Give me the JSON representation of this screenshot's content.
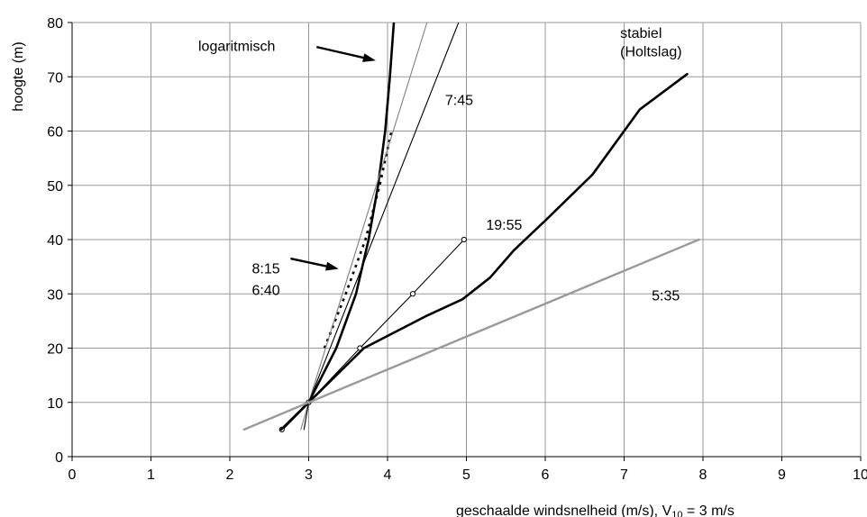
{
  "chart_data": {
    "type": "line",
    "xlabel_main": "geschaalde windsnelheid (m/s), V",
    "xlabel_sub": "10",
    "xlabel_tail": " = 3 m/s",
    "ylabel": "hoogte (m)",
    "xlim": [
      0,
      10
    ],
    "ylim": [
      0,
      80
    ],
    "x_ticks": [
      0,
      1,
      2,
      3,
      4,
      5,
      6,
      7,
      8,
      9,
      10
    ],
    "y_ticks": [
      0,
      10,
      20,
      30,
      40,
      50,
      60,
      70,
      80
    ],
    "x_tick_labels": [
      "0",
      "1",
      "2",
      "3",
      "4",
      "5",
      "6",
      "7",
      "8",
      "9",
      "10"
    ],
    "y_tick_labels": [
      "0",
      "10",
      "20",
      "30",
      "40",
      "50",
      "60",
      "70",
      "80"
    ],
    "grid": true,
    "series": [
      {
        "name": "logaritmisch",
        "color": "#000000",
        "style": "thick",
        "points": [
          [
            2.66,
            5
          ],
          [
            3.0,
            10
          ],
          [
            3.35,
            20
          ],
          [
            3.6,
            30
          ],
          [
            3.76,
            40
          ],
          [
            3.88,
            50
          ],
          [
            3.97,
            60
          ],
          [
            4.03,
            70
          ],
          [
            4.08,
            80
          ]
        ]
      },
      {
        "name": "8:15",
        "color": "#000000",
        "style": "dotted",
        "points": [
          [
            3.2,
            20
          ],
          [
            3.47,
            30
          ],
          [
            3.72,
            40
          ],
          [
            3.9,
            50
          ],
          [
            4.05,
            60
          ]
        ]
      },
      {
        "name": "6:40",
        "color": "#808080",
        "style": "thin",
        "points": [
          [
            2.9,
            5
          ],
          [
            3.0,
            10
          ],
          [
            4.5,
            80
          ]
        ]
      },
      {
        "name": "7:45",
        "color": "#000000",
        "style": "thin",
        "points": [
          [
            2.94,
            5
          ],
          [
            3.0,
            10
          ],
          [
            4.9,
            80
          ]
        ]
      },
      {
        "name": "19:55",
        "color": "#000000",
        "style": "thin-markers",
        "points": [
          [
            2.66,
            5
          ],
          [
            3.0,
            10
          ],
          [
            3.65,
            20
          ],
          [
            4.32,
            30
          ],
          [
            4.97,
            40
          ]
        ]
      },
      {
        "name": "stabiel (Holtslag)",
        "color": "#000000",
        "style": "thick",
        "points": [
          [
            2.65,
            5
          ],
          [
            3.0,
            10
          ],
          [
            3.7,
            20
          ],
          [
            4.5,
            26
          ],
          [
            4.95,
            29
          ],
          [
            5.3,
            33
          ],
          [
            5.6,
            38
          ],
          [
            6.0,
            43.5
          ],
          [
            6.6,
            52
          ],
          [
            7.2,
            64
          ],
          [
            7.8,
            70.5
          ]
        ]
      },
      {
        "name": "5:35",
        "color": "#999999",
        "style": "gray-thick",
        "points": [
          [
            2.18,
            5
          ],
          [
            3.0,
            10
          ],
          [
            7.95,
            40
          ]
        ]
      }
    ],
    "annotations": [
      {
        "text": "logaritmisch",
        "x": 1.6,
        "y": 74.8
      },
      {
        "text": "stabiel",
        "x": 6.95,
        "y": 77.2
      },
      {
        "text": "(Holtslag)",
        "x": 6.95,
        "y": 73.8
      },
      {
        "text": "7:45",
        "x": 4.73,
        "y": 64.8
      },
      {
        "text": "19:55",
        "x": 5.25,
        "y": 41.8
      },
      {
        "text": "8:15",
        "x": 2.28,
        "y": 33.8
      },
      {
        "text": "6:40",
        "x": 2.28,
        "y": 29.8
      },
      {
        "text": "5:35",
        "x": 7.35,
        "y": 28.8
      }
    ],
    "arrows": [
      {
        "from": [
          3.1,
          75.5
        ],
        "to": [
          3.85,
          73.0
        ]
      },
      {
        "from": [
          2.77,
          36.5
        ],
        "to": [
          3.38,
          34.6
        ]
      }
    ]
  }
}
